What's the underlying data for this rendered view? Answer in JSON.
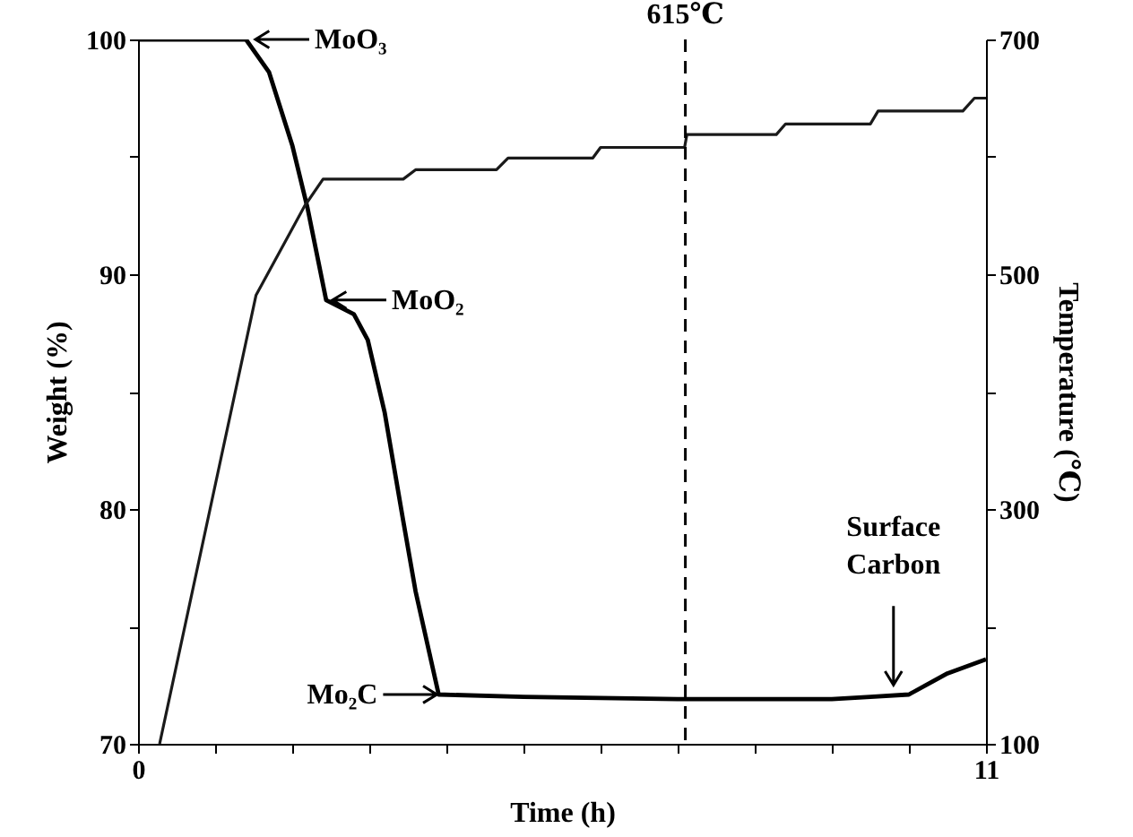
{
  "chart_data": {
    "type": "line",
    "xlabel": "Time (h)",
    "ylabel": "Weight (%)",
    "y2label": "Temperature (℃)",
    "xlim": [
      0,
      11
    ],
    "xticks": [
      0,
      {
        "value": 1,
        "label": null
      },
      {
        "value": 2,
        "label": null
      },
      {
        "value": 3,
        "label": null
      },
      {
        "value": 4,
        "label": null
      },
      {
        "value": 5,
        "label": null
      },
      {
        "value": 6,
        "label": null
      },
      {
        "value": 7,
        "label": null
      },
      {
        "value": 8,
        "label": null
      },
      {
        "value": 9,
        "label": null
      },
      {
        "value": 10,
        "label": null
      },
      11
    ],
    "ylim": [
      70,
      100
    ],
    "yticks": [
      70,
      {
        "value": 75,
        "label": null
      },
      80,
      {
        "value": 85,
        "label": null
      },
      90,
      {
        "value": 95,
        "label": null
      },
      100
    ],
    "y2lim": [
      100,
      700
    ],
    "y2ticks": [
      100,
      {
        "value": 200,
        "label": null
      },
      300,
      {
        "value": 400,
        "label": null
      },
      500,
      {
        "value": 600,
        "label": null
      },
      700
    ],
    "series": [
      {
        "color": "#000000",
        "x": [
          0,
          1.4,
          1.7,
          2.0,
          2.2,
          2.44,
          2.8,
          2.98,
          3.2,
          3.44,
          3.6,
          3.9,
          5,
          7,
          9,
          9.5,
          10,
          10.5,
          11
        ],
        "values": [
          100,
          100,
          98.6,
          95.5,
          92.8,
          88.9,
          88.3,
          87.2,
          84.1,
          79.5,
          76.5,
          72.1,
          72.0,
          71.9,
          71.9,
          72.0,
          72.1,
          73.0,
          73.6
        ]
      },
      {
        "color": "#1a1a1a",
        "axis": "y2",
        "x": [
          0.28,
          1.53,
          2.16,
          2.4,
          3.44,
          3.6,
          4.65,
          4.8,
          5.9,
          6.0,
          7.09,
          7.12,
          8.28,
          8.4,
          9.5,
          9.6,
          10.7,
          10.85,
          11
        ],
        "values": [
          100,
          482,
          558,
          581,
          581,
          589,
          589,
          599,
          599,
          608,
          608,
          619,
          619,
          628,
          628,
          639,
          639,
          650,
          650
        ]
      }
    ],
    "ref_lines": [
      {
        "axis": "x",
        "value": 7.1,
        "label": "615℃",
        "line_style": "dashed"
      }
    ],
    "annotations": [
      {
        "text": "MoO₃",
        "x": 1.5,
        "y": 100
      },
      {
        "text": "MoO₂",
        "x": 2.5,
        "y": 88.9
      },
      {
        "text": "Mo₂C",
        "x": 3.9,
        "y": 72.1
      },
      {
        "text": "Surface Carbon",
        "x": 9.8,
        "y": 72.2
      }
    ],
    "grid": false
  }
}
